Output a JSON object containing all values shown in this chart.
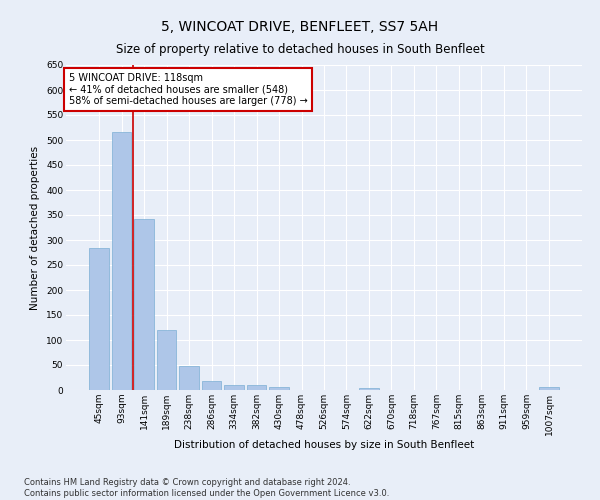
{
  "title": "5, WINCOAT DRIVE, BENFLEET, SS7 5AH",
  "subtitle": "Size of property relative to detached houses in South Benfleet",
  "xlabel": "Distribution of detached houses by size in South Benfleet",
  "ylabel": "Number of detached properties",
  "categories": [
    "45sqm",
    "93sqm",
    "141sqm",
    "189sqm",
    "238sqm",
    "286sqm",
    "334sqm",
    "382sqm",
    "430sqm",
    "478sqm",
    "526sqm",
    "574sqm",
    "622sqm",
    "670sqm",
    "718sqm",
    "767sqm",
    "815sqm",
    "863sqm",
    "911sqm",
    "959sqm",
    "1007sqm"
  ],
  "values": [
    285,
    517,
    343,
    121,
    48,
    19,
    11,
    11,
    6,
    0,
    0,
    0,
    5,
    0,
    0,
    0,
    0,
    0,
    0,
    0,
    6
  ],
  "bar_color": "#aec6e8",
  "bar_edge_color": "#7bafd4",
  "vline_color": "#cc0000",
  "vline_position": 1.5,
  "annotation_text": "5 WINCOAT DRIVE: 118sqm\n← 41% of detached houses are smaller (548)\n58% of semi-detached houses are larger (778) →",
  "annotation_box_color": "#ffffff",
  "annotation_box_edge": "#cc0000",
  "ylim": [
    0,
    650
  ],
  "yticks": [
    0,
    50,
    100,
    150,
    200,
    250,
    300,
    350,
    400,
    450,
    500,
    550,
    600,
    650
  ],
  "footnote": "Contains HM Land Registry data © Crown copyright and database right 2024.\nContains public sector information licensed under the Open Government Licence v3.0.",
  "background_color": "#e8eef8",
  "plot_bg_color": "#e8eef8",
  "grid_color": "#ffffff",
  "title_fontsize": 10,
  "subtitle_fontsize": 8.5,
  "axis_label_fontsize": 7.5,
  "tick_fontsize": 6.5,
  "annotation_fontsize": 7,
  "footnote_fontsize": 6
}
